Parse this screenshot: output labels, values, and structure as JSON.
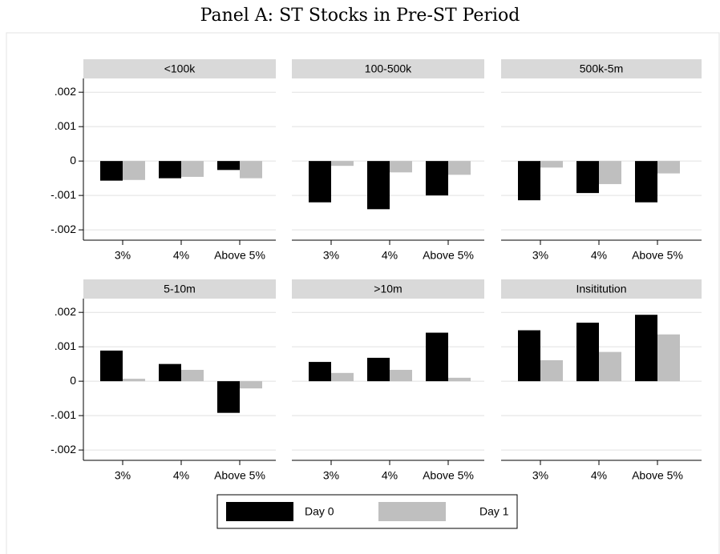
{
  "title": "Panel A: ST Stocks in Pre-ST Period",
  "chart_data": [
    {
      "type": "bar",
      "title": "<100k",
      "categories": [
        "3%",
        "4%",
        "Above 5%"
      ],
      "series": [
        {
          "name": "Day 0",
          "color": "#000000",
          "values": [
            -0.00057,
            -0.0005,
            -0.00026
          ]
        },
        {
          "name": "Day 1",
          "color": "#bfbfbf",
          "values": [
            -0.00055,
            -0.00046,
            -0.0005
          ]
        }
      ],
      "ylim": [
        -0.0023,
        0.0024
      ],
      "yticks": [
        {
          "value": -0.002,
          "label": "-.002"
        },
        {
          "value": -0.001,
          "label": "-.001"
        },
        0,
        {
          "value": 0.001,
          "label": ".001"
        },
        {
          "value": 0.002,
          "label": ".002"
        }
      ],
      "grid": true
    },
    {
      "type": "bar",
      "title": "100-500k",
      "categories": [
        "3%",
        "4%",
        "Above 5%"
      ],
      "series": [
        {
          "name": "Day 0",
          "color": "#000000",
          "values": [
            -0.0012,
            -0.0014,
            -0.001
          ]
        },
        {
          "name": "Day 1",
          "color": "#bfbfbf",
          "values": [
            -0.00014,
            -0.00033,
            -0.0004
          ]
        }
      ],
      "ylim": [
        -0.0023,
        0.0024
      ],
      "grid": true
    },
    {
      "type": "bar",
      "title": "500k-5m",
      "categories": [
        "3%",
        "4%",
        "Above 5%"
      ],
      "series": [
        {
          "name": "Day 0",
          "color": "#000000",
          "values": [
            -0.00114,
            -0.00093,
            -0.0012
          ]
        },
        {
          "name": "Day 1",
          "color": "#bfbfbf",
          "values": [
            -0.00019,
            -0.00067,
            -0.00036
          ]
        }
      ],
      "ylim": [
        -0.0023,
        0.0024
      ],
      "grid": true
    },
    {
      "type": "bar",
      "title": "5-10m",
      "categories": [
        "3%",
        "4%",
        "Above 5%"
      ],
      "series": [
        {
          "name": "Day 0",
          "color": "#000000",
          "values": [
            0.00089,
            0.0005,
            -0.00092
          ]
        },
        {
          "name": "Day 1",
          "color": "#bfbfbf",
          "values": [
            7e-05,
            0.00033,
            -0.00021
          ]
        }
      ],
      "ylim": [
        -0.0023,
        0.0024
      ],
      "yticks": [
        {
          "value": -0.002,
          "label": "-.002"
        },
        {
          "value": -0.001,
          "label": "-.001"
        },
        0,
        {
          "value": 0.001,
          "label": ".001"
        },
        {
          "value": 0.002,
          "label": ".002"
        }
      ],
      "grid": true
    },
    {
      "type": "bar",
      "title": ">10m",
      "categories": [
        "3%",
        "4%",
        "Above 5%"
      ],
      "series": [
        {
          "name": "Day 0",
          "color": "#000000",
          "values": [
            0.00056,
            0.00068,
            0.00141
          ]
        },
        {
          "name": "Day 1",
          "color": "#bfbfbf",
          "values": [
            0.00024,
            0.00033,
            0.0001
          ]
        }
      ],
      "ylim": [
        -0.0023,
        0.0024
      ],
      "grid": true
    },
    {
      "type": "bar",
      "title": "Insititution",
      "categories": [
        "3%",
        "4%",
        "Above 5%"
      ],
      "series": [
        {
          "name": "Day 0",
          "color": "#000000",
          "values": [
            0.00148,
            0.0017,
            0.00193
          ]
        },
        {
          "name": "Day 1",
          "color": "#bfbfbf",
          "values": [
            0.00061,
            0.00085,
            0.00136
          ]
        }
      ],
      "ylim": [
        -0.0023,
        0.0024
      ],
      "grid": true
    }
  ]
}
